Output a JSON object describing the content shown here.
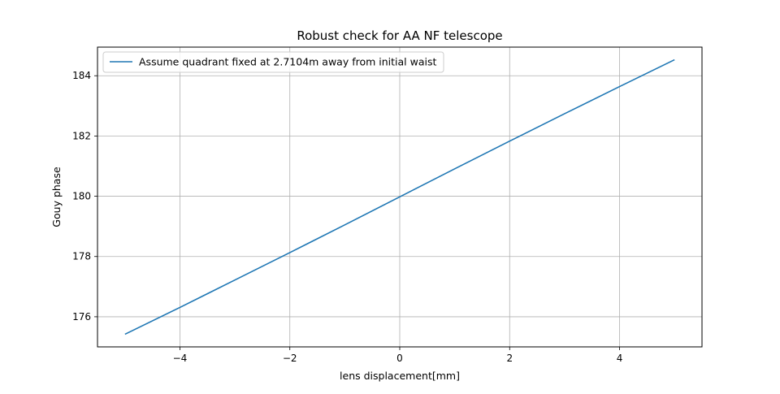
{
  "chart_data": {
    "type": "line",
    "title": "Robust check for AA NF telescope",
    "xlabel": "lens displacement[mm]",
    "ylabel": "Gouy phase",
    "xlim": [
      -5.5,
      5.5
    ],
    "ylim": [
      175.0,
      184.95
    ],
    "x_ticks": [
      -4,
      -2,
      0,
      2,
      4
    ],
    "y_ticks": [
      176,
      178,
      180,
      182,
      184
    ],
    "x_tick_labels": [
      "−4",
      "−2",
      "0",
      "2",
      "4"
    ],
    "y_tick_labels": [
      "176",
      "178",
      "180",
      "182",
      "184"
    ],
    "grid": true,
    "legend_position": "top-left",
    "series": [
      {
        "name": "Assume quadrant fixed at 2.7104m away from initial waist",
        "color": "#1f77b4",
        "x": [
          -5,
          -4,
          -3,
          -2,
          -1,
          0,
          1,
          2,
          3,
          4,
          5
        ],
        "y": [
          175.42,
          176.31,
          177.22,
          178.13,
          179.05,
          179.98,
          180.91,
          181.83,
          182.74,
          183.64,
          184.53
        ]
      }
    ]
  }
}
